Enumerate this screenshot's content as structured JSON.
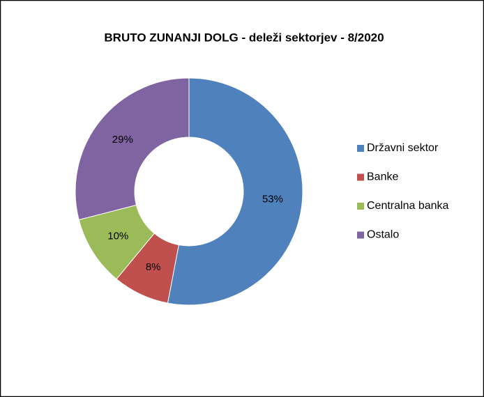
{
  "chart_data": {
    "type": "donut",
    "title": "BRUTO ZUNANJI DOLG - deleži sektorjev - 8/2020",
    "categories": [
      "Državni sektor",
      "Banke",
      "Centralna banka",
      "Ostalo"
    ],
    "values": [
      53,
      8,
      10,
      29
    ],
    "value_labels": [
      "53%",
      "8%",
      "10%",
      "29%"
    ],
    "colors": [
      "#4f81bd",
      "#c0504d",
      "#9bbb59",
      "#8064a2"
    ],
    "legend": "right"
  }
}
